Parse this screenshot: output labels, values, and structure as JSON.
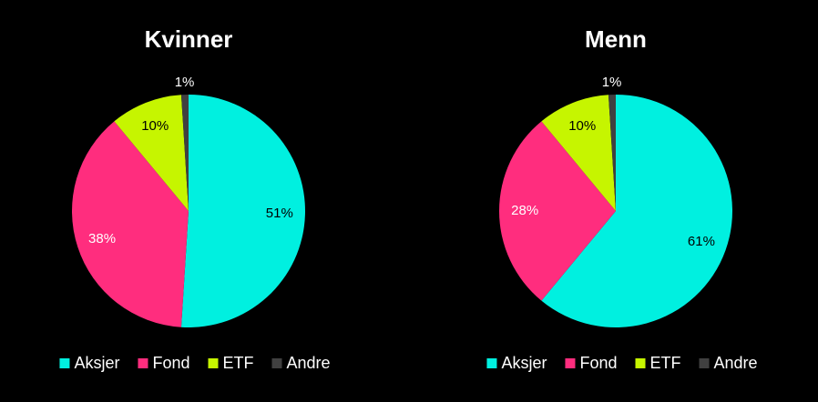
{
  "chart_data": [
    {
      "type": "pie",
      "title": "Kvinner",
      "categories": [
        "Aksjer",
        "Fond",
        "ETF",
        "Andre"
      ],
      "values": [
        51,
        38,
        10,
        1
      ],
      "value_labels": [
        "51%",
        "38%",
        "10%",
        "1%"
      ],
      "colors": [
        "#00f0e0",
        "#ff2d7e",
        "#c6f500",
        "#404040"
      ]
    },
    {
      "type": "pie",
      "title": "Menn",
      "categories": [
        "Aksjer",
        "Fond",
        "ETF",
        "Andre"
      ],
      "values": [
        61,
        28,
        10,
        1
      ],
      "value_labels": [
        "61%",
        "28%",
        "10%",
        "1%"
      ],
      "colors": [
        "#00f0e0",
        "#ff2d7e",
        "#c6f500",
        "#404040"
      ]
    }
  ]
}
